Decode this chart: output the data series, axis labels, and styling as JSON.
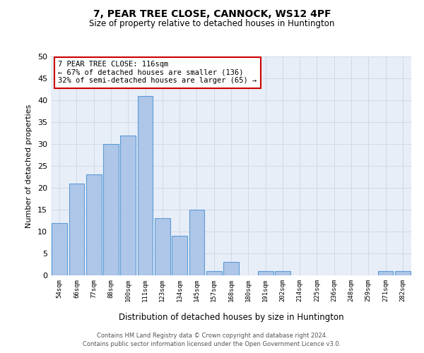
{
  "title1": "7, PEAR TREE CLOSE, CANNOCK, WS12 4PF",
  "title2": "Size of property relative to detached houses in Huntington",
  "xlabel": "Distribution of detached houses by size in Huntington",
  "ylabel": "Number of detached properties",
  "categories": [
    "54sqm",
    "66sqm",
    "77sqm",
    "88sqm",
    "100sqm",
    "111sqm",
    "123sqm",
    "134sqm",
    "145sqm",
    "157sqm",
    "168sqm",
    "180sqm",
    "191sqm",
    "202sqm",
    "214sqm",
    "225sqm",
    "236sqm",
    "248sqm",
    "259sqm",
    "271sqm",
    "282sqm"
  ],
  "values": [
    12,
    21,
    23,
    30,
    32,
    41,
    13,
    9,
    15,
    1,
    3,
    0,
    1,
    1,
    0,
    0,
    0,
    0,
    0,
    1,
    1
  ],
  "bar_color": "#aec6e8",
  "bar_edge_color": "#5b9bd5",
  "annotation_text": "7 PEAR TREE CLOSE: 116sqm\n← 67% of detached houses are smaller (136)\n32% of semi-detached houses are larger (65) →",
  "annotation_box_color": "#ffffff",
  "annotation_box_edge_color": "#cc0000",
  "ylim": [
    0,
    50
  ],
  "yticks": [
    0,
    5,
    10,
    15,
    20,
    25,
    30,
    35,
    40,
    45,
    50
  ],
  "grid_color": "#d0d8e8",
  "bg_color": "#e8eef8",
  "footer1": "Contains HM Land Registry data © Crown copyright and database right 2024.",
  "footer2": "Contains public sector information licensed under the Open Government Licence v3.0."
}
